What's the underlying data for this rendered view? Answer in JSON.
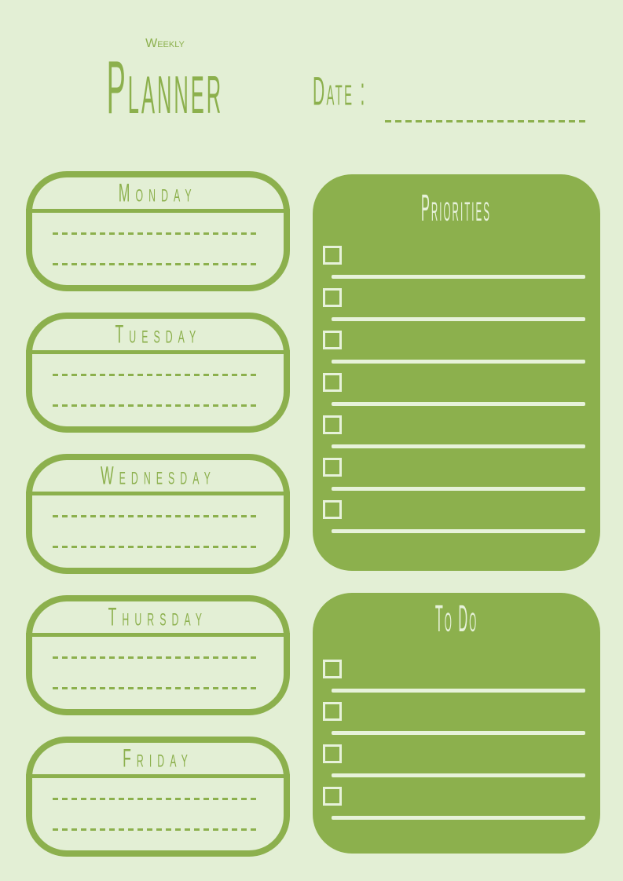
{
  "header": {
    "title_line1": "Weekly",
    "title_line2": "Planner",
    "date_label": "Date :"
  },
  "days": [
    {
      "label": "Monday"
    },
    {
      "label": "Tuesday"
    },
    {
      "label": "Wednesday"
    },
    {
      "label": "Thursday"
    },
    {
      "label": "Friday"
    }
  ],
  "panels": {
    "priorities": {
      "title": "Priorities",
      "item_count": 7
    },
    "todo": {
      "title": "To Do",
      "item_count": 4
    }
  },
  "colors": {
    "background": "#e3efd5",
    "accent_green": "#8cb04d",
    "light_on_green": "#e7f2da"
  }
}
